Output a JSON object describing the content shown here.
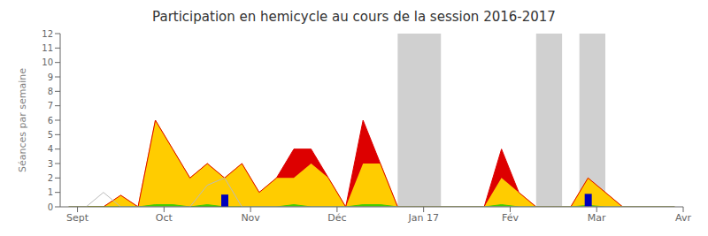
{
  "chart_data": {
    "type": "area",
    "title": "Participation en hemicycle au cours de la session 2016-2017",
    "ylabel": "Séances par semaine",
    "x": [
      0,
      1,
      2,
      3,
      4,
      5,
      6,
      7,
      8,
      9,
      10,
      11,
      12,
      13,
      14,
      15,
      16,
      17,
      18,
      19,
      20,
      21,
      22,
      23,
      24,
      25,
      26,
      27,
      28,
      29,
      30,
      31,
      32,
      33,
      34,
      35
    ],
    "xlim": [
      -0.5,
      35.5
    ],
    "xticks": [
      {
        "value": 0.5,
        "label": "Sept"
      },
      {
        "value": 5.5,
        "label": "Oct"
      },
      {
        "value": 10.5,
        "label": "Nov"
      },
      {
        "value": 15.5,
        "label": "Déc"
      },
      {
        "value": 20.5,
        "label": "Jan 17"
      },
      {
        "value": 25.5,
        "label": "Fév"
      },
      {
        "value": 30.5,
        "label": "Mar"
      },
      {
        "value": 35.5,
        "label": "Avr"
      }
    ],
    "ylim": [
      0,
      12
    ],
    "yticks": [
      0,
      1,
      2,
      3,
      4,
      5,
      6,
      7,
      8,
      9,
      10,
      11,
      12
    ],
    "bands": [
      [
        19.0,
        21.5
      ],
      [
        27.0,
        28.5
      ],
      [
        29.5,
        31.0
      ]
    ],
    "band_color": "#aaaaaa",
    "series": [
      {
        "type": "area",
        "stacked": true,
        "color": "#ffcc00",
        "values": [
          0,
          0,
          0,
          0.8,
          0,
          6,
          4,
          2,
          3,
          2,
          3,
          1,
          2,
          2,
          3,
          2,
          0,
          3,
          3,
          0,
          0,
          0,
          0,
          0,
          0,
          2,
          1,
          0,
          0,
          0,
          2,
          1,
          0,
          0,
          0,
          0
        ]
      },
      {
        "type": "area",
        "stacked": true,
        "color": "#dd0000",
        "values": [
          0,
          0,
          0,
          0,
          0,
          0,
          0,
          0,
          0,
          0,
          0,
          0,
          0,
          2,
          1,
          0,
          0,
          3,
          0,
          0,
          0,
          0,
          0,
          0,
          0,
          2,
          0,
          0,
          0,
          0,
          0,
          0,
          0,
          0,
          0,
          0
        ]
      },
      {
        "type": "area",
        "color": "#44cc00",
        "values": [
          0,
          0,
          0,
          0,
          0,
          0.15,
          0.15,
          0,
          0.15,
          0,
          0,
          0,
          0,
          0.15,
          0,
          0,
          0,
          0.15,
          0.15,
          0,
          0,
          0,
          0,
          0,
          0,
          0.15,
          0,
          0,
          0,
          0,
          0.1,
          0,
          0,
          0,
          0,
          0
        ]
      },
      {
        "type": "line",
        "color": "#bbbbbb",
        "values": [
          0,
          0,
          1,
          0,
          0,
          0,
          0,
          0,
          1.5,
          2,
          0,
          0,
          0,
          0,
          0,
          0,
          0,
          0,
          0,
          0,
          0,
          0,
          0,
          0,
          0,
          0,
          0,
          0,
          0,
          0,
          0,
          0,
          0,
          0,
          0,
          0
        ]
      },
      {
        "type": "bar",
        "color": "#0000bb",
        "values": [
          null,
          null,
          null,
          null,
          null,
          null,
          null,
          null,
          null,
          0.85,
          null,
          null,
          null,
          null,
          null,
          null,
          null,
          null,
          null,
          null,
          null,
          null,
          null,
          null,
          null,
          null,
          null,
          null,
          null,
          null,
          0.9,
          null,
          null,
          null,
          null,
          null
        ]
      }
    ]
  }
}
